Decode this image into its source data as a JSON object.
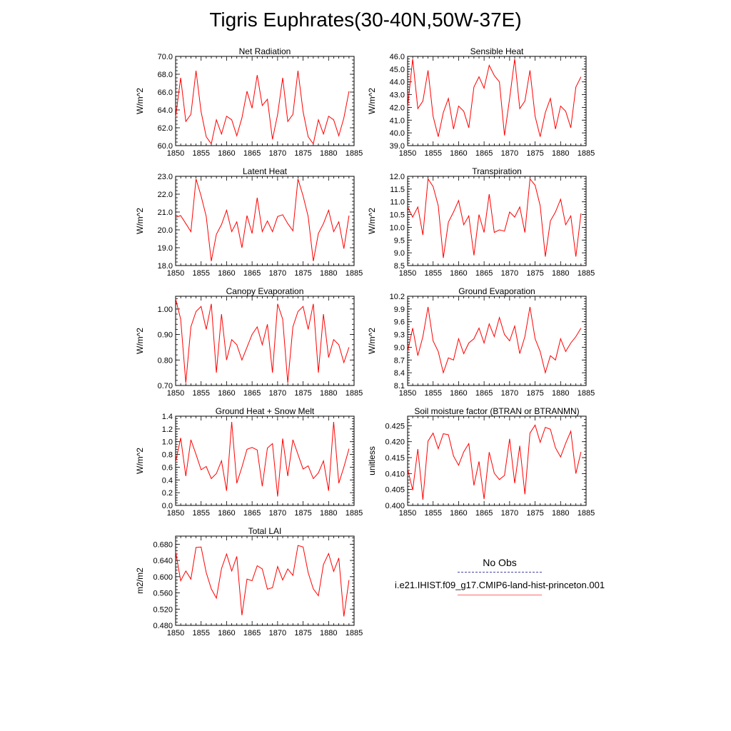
{
  "page": {
    "title": "Tigris Euphrates(30-40N,50W-37E)"
  },
  "legend": {
    "title": "No Obs",
    "obs_color": "#4444aa",
    "model_label": "i.e21.IHIST.f09_g17.CMIP6-land-hist-princeton.001",
    "model_color": "#ff0000"
  },
  "chart_data": [
    {
      "type": "line",
      "title": "Net Radiation",
      "ylabel": "W/m^2",
      "x": [
        1850,
        1851,
        1852,
        1853,
        1854,
        1855,
        1856,
        1857,
        1858,
        1859,
        1860,
        1861,
        1862,
        1863,
        1864,
        1865,
        1866,
        1867,
        1868,
        1869,
        1870,
        1871,
        1872,
        1873,
        1874,
        1875,
        1876,
        1877,
        1878,
        1879,
        1880,
        1881,
        1882,
        1883,
        1884
      ],
      "series": [
        {
          "values": [
            63.2,
            67.6,
            62.7,
            63.5,
            68.4,
            63.8,
            61.0,
            60.2,
            62.9,
            61.3,
            63.3,
            62.9,
            61.1,
            63.1,
            66.1,
            64.2,
            67.9,
            64.5,
            65.2,
            60.7,
            63.5,
            67.6,
            62.7,
            63.5,
            68.4,
            63.8,
            61.0,
            60.2,
            62.9,
            61.3,
            63.3,
            62.9,
            61.1,
            63.1,
            66.1
          ],
          "color": "#ff0000"
        }
      ],
      "ylim": [
        60,
        70
      ],
      "yticks": [
        "60.0",
        "62.0",
        "64.0",
        "66.0",
        "68.0",
        "70.0"
      ],
      "xticks": [
        "1850",
        "1855",
        "1860",
        "1865",
        "1870",
        "1875",
        "1880",
        "1885"
      ]
    },
    {
      "type": "line",
      "title": "Sensible Heat",
      "ylabel": "W/m^2",
      "x": [
        1850,
        1851,
        1852,
        1853,
        1854,
        1855,
        1856,
        1857,
        1858,
        1859,
        1860,
        1861,
        1862,
        1863,
        1864,
        1865,
        1866,
        1867,
        1868,
        1869,
        1870,
        1871,
        1872,
        1873,
        1874,
        1875,
        1876,
        1877,
        1878,
        1879,
        1880,
        1881,
        1882,
        1883,
        1884
      ],
      "series": [
        {
          "values": [
            42.0,
            45.8,
            41.9,
            42.5,
            44.9,
            41.3,
            39.7,
            41.6,
            42.7,
            40.3,
            42.1,
            41.7,
            40.4,
            43.6,
            44.4,
            43.5,
            45.3,
            44.5,
            44.0,
            39.8,
            42.7,
            45.8,
            41.9,
            42.5,
            44.9,
            41.3,
            39.7,
            41.6,
            42.7,
            40.3,
            42.1,
            41.7,
            40.4,
            43.6,
            44.4
          ],
          "color": "#ff0000"
        }
      ],
      "ylim": [
        39,
        46
      ],
      "yticks": [
        "39.0",
        "40.0",
        "41.0",
        "42.0",
        "43.0",
        "44.0",
        "45.0",
        "46.0"
      ],
      "xticks": [
        "1850",
        "1855",
        "1860",
        "1865",
        "1870",
        "1875",
        "1880",
        "1885"
      ]
    },
    {
      "type": "line",
      "title": "Latent Heat",
      "ylabel": "W/m^2",
      "x": [
        1850,
        1851,
        1852,
        1853,
        1854,
        1855,
        1856,
        1857,
        1858,
        1859,
        1860,
        1861,
        1862,
        1863,
        1864,
        1865,
        1866,
        1867,
        1868,
        1869,
        1870,
        1871,
        1872,
        1873,
        1874,
        1875,
        1876,
        1877,
        1878,
        1879,
        1880,
        1881,
        1882,
        1883,
        1884
      ],
      "series": [
        {
          "values": [
            20.7,
            20.8,
            20.35,
            19.9,
            22.85,
            21.9,
            20.75,
            18.25,
            19.75,
            20.3,
            21.1,
            19.9,
            20.45,
            19.0,
            20.8,
            19.8,
            21.8,
            19.9,
            20.5,
            19.9,
            20.75,
            20.85,
            20.35,
            19.95,
            22.85,
            21.9,
            20.75,
            18.25,
            19.8,
            20.35,
            21.1,
            19.9,
            20.45,
            18.95,
            20.8
          ],
          "color": "#ff0000"
        }
      ],
      "ylim": [
        18,
        23
      ],
      "yticks": [
        "18.0",
        "19.0",
        "20.0",
        "21.0",
        "22.0",
        "23.0"
      ],
      "xticks": [
        "1850",
        "1855",
        "1860",
        "1865",
        "1870",
        "1875",
        "1880",
        "1885"
      ]
    },
    {
      "type": "line",
      "title": "Transpiration",
      "ylabel": "W/m^2",
      "x": [
        1850,
        1851,
        1852,
        1853,
        1854,
        1855,
        1856,
        1857,
        1858,
        1859,
        1860,
        1861,
        1862,
        1863,
        1864,
        1865,
        1866,
        1867,
        1868,
        1869,
        1870,
        1871,
        1872,
        1873,
        1874,
        1875,
        1876,
        1877,
        1878,
        1879,
        1880,
        1881,
        1882,
        1883,
        1884
      ],
      "series": [
        {
          "values": [
            10.8,
            10.4,
            10.8,
            9.7,
            11.9,
            11.6,
            10.85,
            8.8,
            10.2,
            10.6,
            11.05,
            10.1,
            10.45,
            8.9,
            10.5,
            9.8,
            11.3,
            9.8,
            9.9,
            9.85,
            10.6,
            10.4,
            10.8,
            9.8,
            11.9,
            11.65,
            10.85,
            8.85,
            10.25,
            10.6,
            11.1,
            10.1,
            10.45,
            8.85,
            10.55
          ],
          "color": "#ff0000"
        }
      ],
      "ylim": [
        8.5,
        12.0
      ],
      "yticks": [
        "8.5",
        "9.0",
        "9.5",
        "10.0",
        "10.5",
        "11.0",
        "11.5",
        "12.0"
      ],
      "xticks": [
        "1850",
        "1855",
        "1860",
        "1865",
        "1870",
        "1875",
        "1880",
        "1885"
      ]
    },
    {
      "type": "line",
      "title": "Canopy Evaporation",
      "ylabel": "W/m^2",
      "x": [
        1850,
        1851,
        1852,
        1853,
        1854,
        1855,
        1856,
        1857,
        1858,
        1859,
        1860,
        1861,
        1862,
        1863,
        1864,
        1865,
        1866,
        1867,
        1868,
        1869,
        1870,
        1871,
        1872,
        1873,
        1874,
        1875,
        1876,
        1877,
        1878,
        1879,
        1880,
        1881,
        1882,
        1883,
        1884
      ],
      "series": [
        {
          "values": [
            1.04,
            0.96,
            0.71,
            0.93,
            0.99,
            1.01,
            0.92,
            1.02,
            0.75,
            0.98,
            0.8,
            0.88,
            0.86,
            0.8,
            0.85,
            0.9,
            0.93,
            0.86,
            0.94,
            0.75,
            1.02,
            0.96,
            0.71,
            0.93,
            0.99,
            1.01,
            0.92,
            1.02,
            0.75,
            0.98,
            0.81,
            0.88,
            0.86,
            0.79,
            0.85
          ],
          "color": "#ff0000"
        }
      ],
      "ylim": [
        0.7,
        1.05
      ],
      "yticks": [
        "0.70",
        "0.80",
        "0.90",
        "1.00"
      ],
      "xticks": [
        "1850",
        "1855",
        "1860",
        "1865",
        "1870",
        "1875",
        "1880",
        "1885"
      ]
    },
    {
      "type": "line",
      "title": "Ground Evaporation",
      "ylabel": "W/m^2",
      "x": [
        1850,
        1851,
        1852,
        1853,
        1854,
        1855,
        1856,
        1857,
        1858,
        1859,
        1860,
        1861,
        1862,
        1863,
        1864,
        1865,
        1866,
        1867,
        1868,
        1869,
        1870,
        1871,
        1872,
        1873,
        1874,
        1875,
        1876,
        1877,
        1878,
        1879,
        1880,
        1881,
        1882,
        1883,
        1884
      ],
      "series": [
        {
          "values": [
            8.9,
            9.45,
            8.8,
            9.25,
            9.95,
            9.15,
            8.9,
            8.4,
            8.75,
            8.7,
            9.2,
            8.85,
            9.1,
            9.2,
            9.45,
            9.1,
            9.55,
            9.25,
            9.7,
            9.3,
            9.15,
            9.5,
            8.85,
            9.25,
            9.95,
            9.2,
            8.9,
            8.4,
            8.8,
            8.7,
            9.2,
            8.9,
            9.1,
            9.25,
            9.45
          ],
          "color": "#ff0000"
        }
      ],
      "ylim": [
        8.1,
        10.2
      ],
      "yticks": [
        "8.1",
        "8.4",
        "8.7",
        "9.0",
        "9.3",
        "9.6",
        "9.9",
        "10.2"
      ],
      "xticks": [
        "1850",
        "1855",
        "1860",
        "1865",
        "1870",
        "1875",
        "1880",
        "1885"
      ]
    },
    {
      "type": "line",
      "title": "Ground Heat + Snow Melt",
      "ylabel": "W/m^2",
      "x": [
        1850,
        1851,
        1852,
        1853,
        1854,
        1855,
        1856,
        1857,
        1858,
        1859,
        1860,
        1861,
        1862,
        1863,
        1864,
        1865,
        1866,
        1867,
        1868,
        1869,
        1870,
        1871,
        1872,
        1873,
        1874,
        1875,
        1876,
        1877,
        1878,
        1879,
        1880,
        1881,
        1882,
        1883,
        1884
      ],
      "series": [
        {
          "values": [
            0.68,
            1.06,
            0.46,
            1.03,
            0.8,
            0.56,
            0.61,
            0.42,
            0.5,
            0.7,
            0.23,
            1.31,
            0.35,
            0.6,
            0.88,
            0.91,
            0.87,
            0.3,
            0.9,
            0.97,
            0.14,
            1.05,
            0.46,
            1.03,
            0.8,
            0.57,
            0.62,
            0.42,
            0.51,
            0.7,
            0.23,
            1.31,
            0.35,
            0.6,
            0.89
          ],
          "color": "#ff0000"
        }
      ],
      "ylim": [
        0.0,
        1.4
      ],
      "yticks": [
        "0.0",
        "0.2",
        "0.4",
        "0.6",
        "0.8",
        "1.0",
        "1.2",
        "1.4"
      ],
      "xticks": [
        "1850",
        "1855",
        "1860",
        "1865",
        "1870",
        "1875",
        "1880",
        "1885"
      ]
    },
    {
      "type": "line",
      "title": "Soil moisture factor (BTRAN or BTRANMN)",
      "ylabel": "unitless",
      "x": [
        1850,
        1851,
        1852,
        1853,
        1854,
        1855,
        1856,
        1857,
        1858,
        1859,
        1860,
        1861,
        1862,
        1863,
        1864,
        1865,
        1866,
        1867,
        1868,
        1869,
        1870,
        1871,
        1872,
        1873,
        1874,
        1875,
        1876,
        1877,
        1878,
        1879,
        1880,
        1881,
        1882,
        1883,
        1884
      ],
      "series": [
        {
          "values": [
            0.4115,
            0.4048,
            0.4177,
            0.4018,
            0.4202,
            0.4227,
            0.4178,
            0.4225,
            0.4222,
            0.4155,
            0.4126,
            0.4168,
            0.4194,
            0.4063,
            0.4138,
            0.402,
            0.4167,
            0.4101,
            0.4081,
            0.4094,
            0.4209,
            0.407,
            0.4187,
            0.4035,
            0.4227,
            0.4252,
            0.4198,
            0.4245,
            0.4239,
            0.4181,
            0.4152,
            0.4195,
            0.4233,
            0.41,
            0.4168
          ],
          "color": "#ff0000"
        }
      ],
      "ylim": [
        0.4,
        0.428
      ],
      "yticks": [
        "0.400",
        "0.405",
        "0.410",
        "0.415",
        "0.420",
        "0.425"
      ],
      "xticks": [
        "1850",
        "1855",
        "1860",
        "1865",
        "1870",
        "1875",
        "1880",
        "1885"
      ]
    },
    {
      "type": "line",
      "title": "Total LAI",
      "ylabel": "m2/m2",
      "x": [
        1850,
        1851,
        1852,
        1853,
        1854,
        1855,
        1856,
        1857,
        1858,
        1859,
        1860,
        1861,
        1862,
        1863,
        1864,
        1865,
        1866,
        1867,
        1868,
        1869,
        1870,
        1871,
        1872,
        1873,
        1874,
        1875,
        1876,
        1877,
        1878,
        1879,
        1880,
        1881,
        1882,
        1883,
        1884
      ],
      "series": [
        {
          "values": [
            0.662,
            0.59,
            0.614,
            0.594,
            0.672,
            0.673,
            0.61,
            0.57,
            0.547,
            0.62,
            0.656,
            0.614,
            0.65,
            0.505,
            0.594,
            0.59,
            0.627,
            0.619,
            0.569,
            0.573,
            0.625,
            0.592,
            0.619,
            0.603,
            0.677,
            0.673,
            0.61,
            0.57,
            0.553,
            0.63,
            0.657,
            0.613,
            0.646,
            0.502,
            0.592
          ],
          "color": "#ff0000"
        }
      ],
      "ylim": [
        0.48,
        0.7
      ],
      "yticks": [
        "0.480",
        "0.520",
        "0.560",
        "0.600",
        "0.640",
        "0.680"
      ],
      "xticks": [
        "1850",
        "1855",
        "1860",
        "1865",
        "1870",
        "1875",
        "1880",
        "1885"
      ]
    }
  ]
}
